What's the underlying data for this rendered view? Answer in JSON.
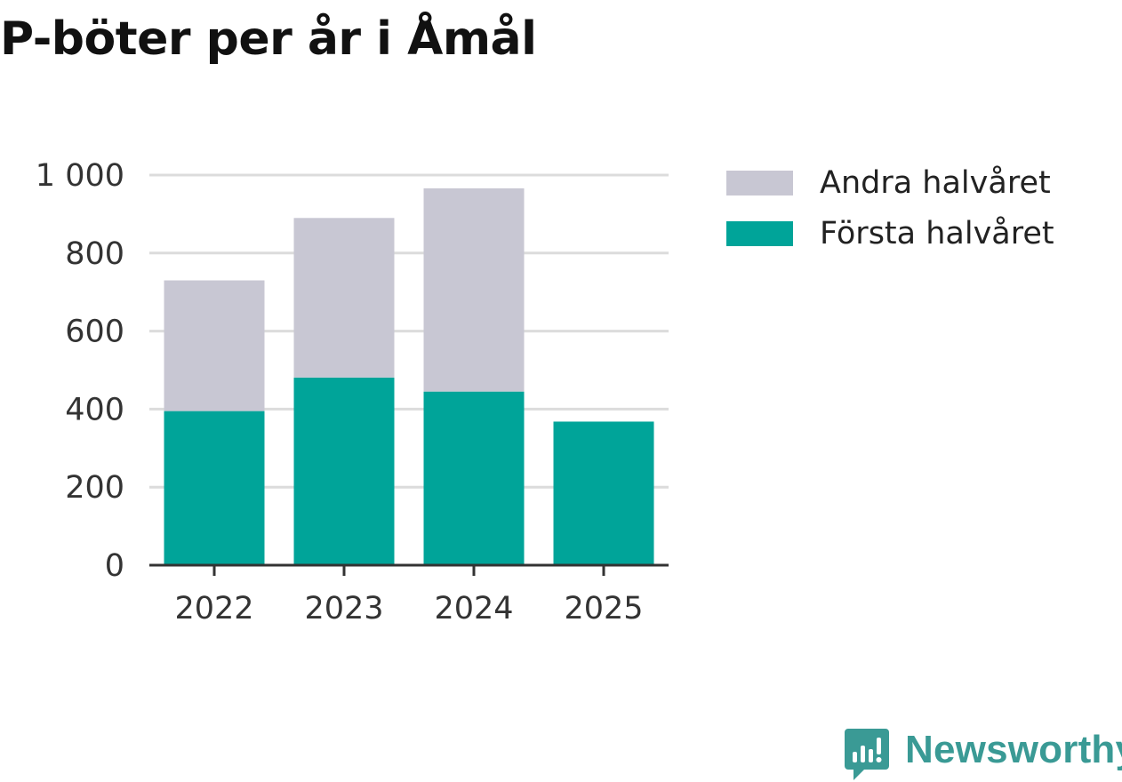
{
  "chart_data": {
    "type": "bar",
    "stacked": true,
    "title": "P-böter per år i Åmål",
    "xlabel": "",
    "ylabel": "",
    "categories": [
      "2022",
      "2023",
      "2024",
      "2025"
    ],
    "series": [
      {
        "name": "Första halvåret",
        "color": "#00a499",
        "values": [
          395,
          481,
          445,
          368
        ]
      },
      {
        "name": "Andra halvåret",
        "color": "#c8c7d3",
        "values": [
          335,
          409,
          521,
          null
        ]
      }
    ],
    "ylim": [
      0,
      1000
    ],
    "yticks": [
      0,
      200,
      400,
      600,
      800,
      1000
    ],
    "ytick_labels": [
      "0",
      "200",
      "400",
      "600",
      "800",
      "1 000"
    ],
    "grid": true,
    "legend_position": "right",
    "legend": [
      "Andra halvåret",
      "Första halvåret"
    ]
  },
  "brand": {
    "name": "Newsworthy",
    "icon": "newsworthy-logo-icon",
    "color": "#3a9a95"
  }
}
